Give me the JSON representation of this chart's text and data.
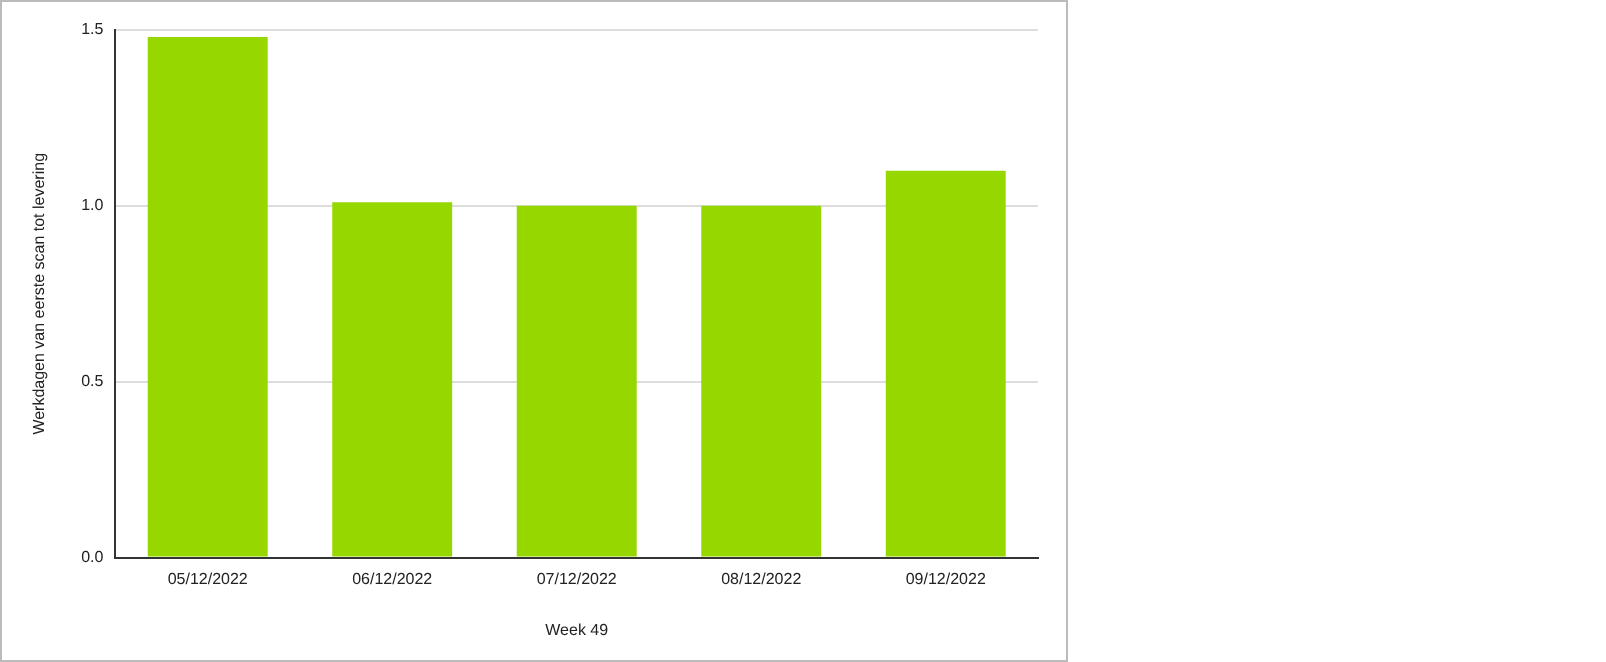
{
  "chart_data": {
    "type": "bar",
    "xlabel": "Week 49",
    "ylabel": "Werkdagen van eerste scan tot levering",
    "categories": [
      "05/12/2022",
      "06/12/2022",
      "07/12/2022",
      "08/12/2022",
      "09/12/2022"
    ],
    "values": [
      1.48,
      1.01,
      1.0,
      1.0,
      1.1
    ],
    "color": "#97d700",
    "ylim": [
      0,
      1.5
    ],
    "yticks": [
      {
        "value": 0,
        "label": "0.0"
      },
      {
        "value": 0.5,
        "label": "0.5"
      },
      {
        "value": 1,
        "label": "1.0"
      },
      {
        "value": 1.5,
        "label": "1.5"
      }
    ],
    "grid": "y",
    "legend": false
  }
}
